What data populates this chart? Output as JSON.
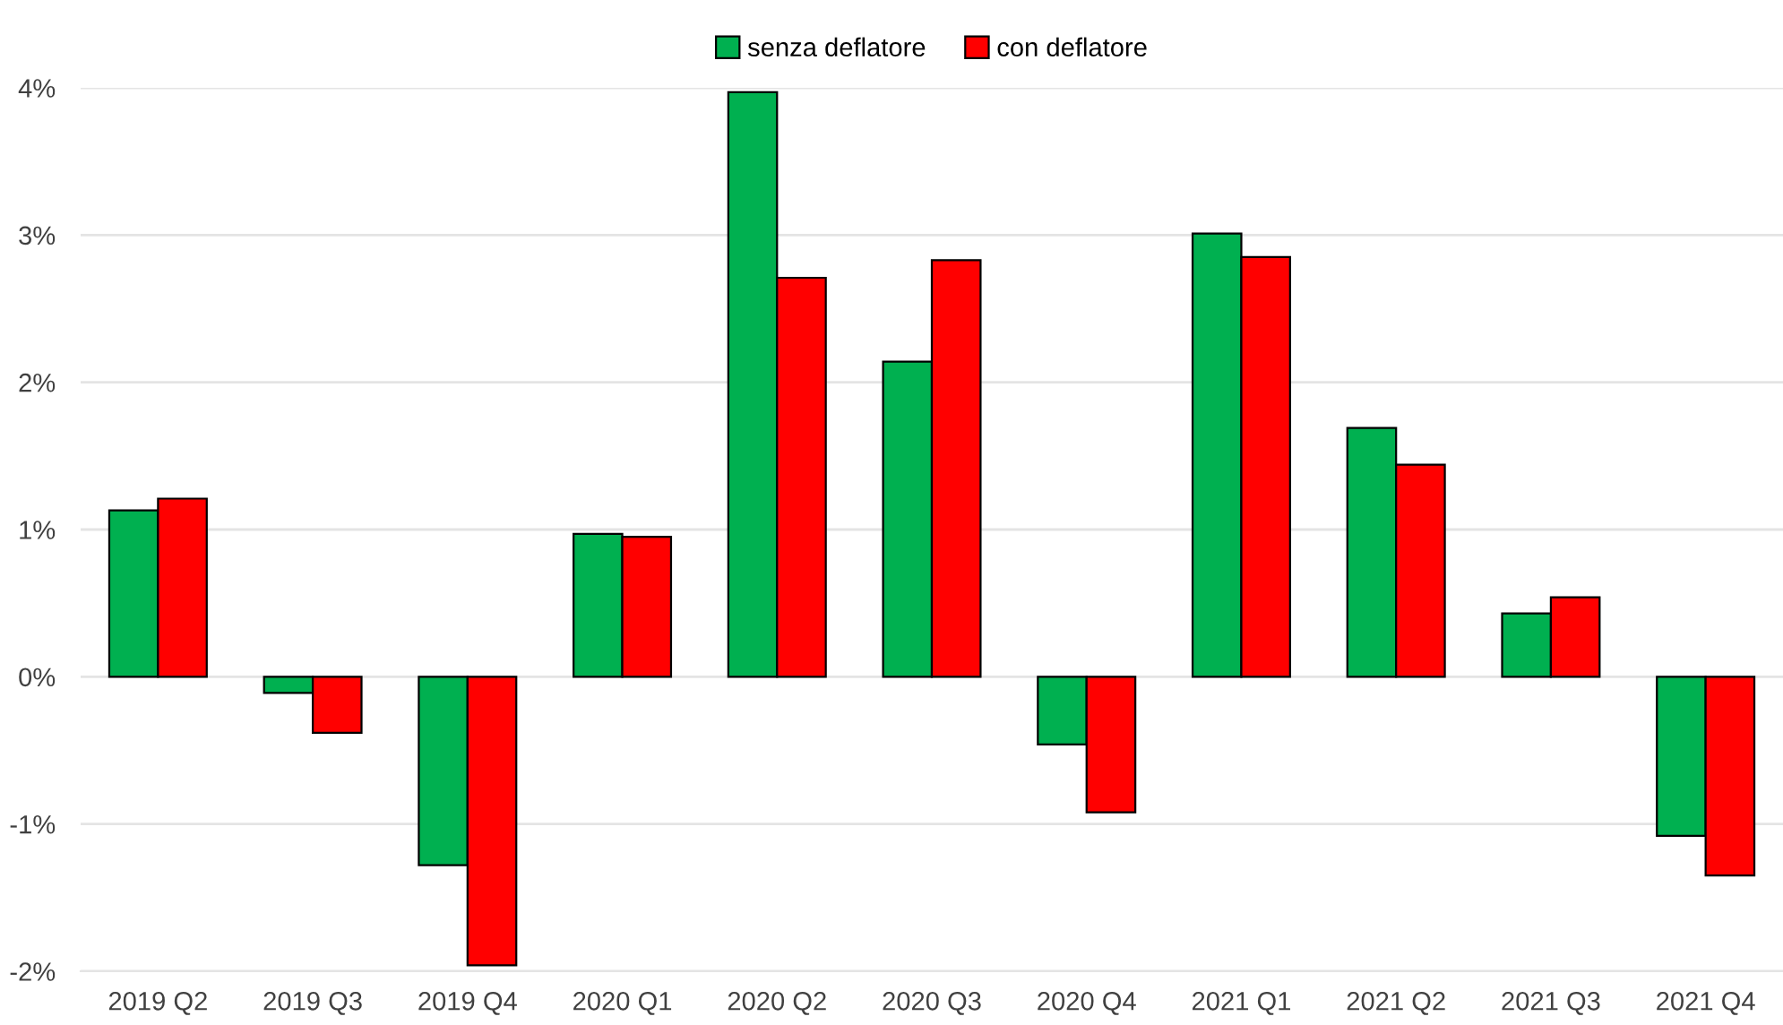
{
  "chart_data": {
    "type": "bar",
    "categories": [
      "2019 Q2",
      "2019 Q3",
      "2019 Q4",
      "2020 Q1",
      "2020 Q2",
      "2020 Q3",
      "2020 Q4",
      "2021 Q1",
      "2021 Q2",
      "2021 Q3",
      "2021 Q4"
    ],
    "series": [
      {
        "name": "senza deflatore",
        "color": "#00b050",
        "values": [
          1.13,
          -0.11,
          -1.28,
          0.97,
          3.97,
          2.14,
          -0.46,
          3.01,
          1.69,
          0.43,
          -1.08
        ]
      },
      {
        "name": "con deflatore",
        "color": "#ff0000",
        "values": [
          1.21,
          -0.38,
          -1.96,
          0.95,
          2.71,
          2.83,
          -0.92,
          2.85,
          1.44,
          0.54,
          -1.35
        ]
      }
    ],
    "ylim": [
      -2,
      4
    ],
    "yticks": [
      {
        "value": -2,
        "label": "-2%"
      },
      {
        "value": -1,
        "label": "-1%"
      },
      {
        "value": 0,
        "label": "0%"
      },
      {
        "value": 1,
        "label": "1%"
      },
      {
        "value": 2,
        "label": "2%"
      },
      {
        "value": 3,
        "label": "3%"
      },
      {
        "value": 4,
        "label": "4%"
      }
    ],
    "grid": "y",
    "legend": "top"
  }
}
